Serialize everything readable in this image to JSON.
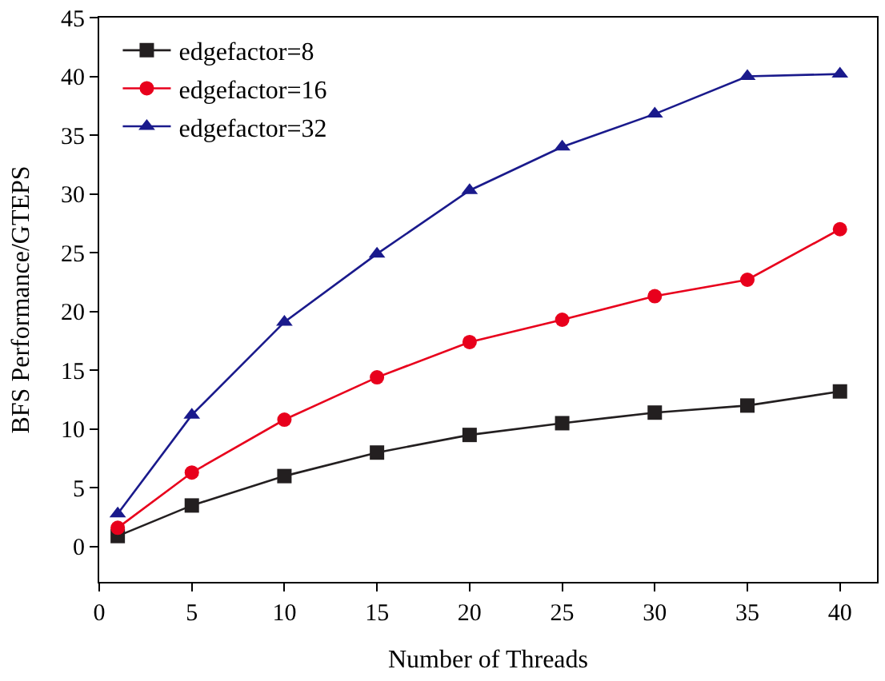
{
  "chart_data": {
    "type": "line",
    "xlabel": "Number of Threads",
    "ylabel": "BFS Performance/GTEPS",
    "x": [
      1,
      5,
      10,
      15,
      20,
      25,
      30,
      35,
      40
    ],
    "series": [
      {
        "name": "edgefactor=8",
        "color": "#231f20",
        "marker": "square",
        "values": [
          0.9,
          3.5,
          6.0,
          8.0,
          9.5,
          10.5,
          11.4,
          12.0,
          13.2
        ]
      },
      {
        "name": "edgefactor=16",
        "color": "#e8001c",
        "marker": "circle",
        "values": [
          1.6,
          6.3,
          10.8,
          14.4,
          17.4,
          19.3,
          21.3,
          22.7,
          27.0
        ]
      },
      {
        "name": "edgefactor=32",
        "color": "#1a1a8c",
        "marker": "triangle",
        "values": [
          2.8,
          11.2,
          19.1,
          24.9,
          30.3,
          34.0,
          36.8,
          40.0,
          40.2
        ]
      }
    ],
    "xlim": [
      0,
      42
    ],
    "xticks": [
      0,
      5,
      10,
      15,
      20,
      25,
      30,
      35,
      40
    ],
    "ylim": [
      -3,
      45
    ],
    "yticks": [
      0,
      5,
      10,
      15,
      20,
      25,
      30,
      35,
      40,
      45
    ],
    "legend": "top left",
    "line_style": "solid"
  }
}
